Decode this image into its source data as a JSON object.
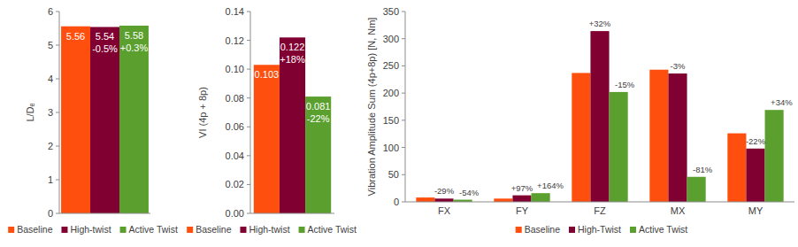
{
  "chart_data": [
    {
      "type": "bar",
      "ylabel": "L/Dₑ",
      "categories": [
        null
      ],
      "series": [
        {
          "name": "Baseline",
          "color": "#ff4f0f",
          "values": [
            5.56
          ]
        },
        {
          "name": "High-twist",
          "color": "#7f0031",
          "values": [
            5.54
          ],
          "annotations": [
            "-0.5%"
          ]
        },
        {
          "name": "Active Twist",
          "color": "#5ba02e",
          "values": [
            5.58
          ],
          "annotations": [
            "+0.3%"
          ]
        }
      ],
      "ylim": [
        0,
        6
      ],
      "yticks": [
        0,
        1,
        2,
        3,
        4,
        5,
        6
      ],
      "grid": false,
      "legend": "bottom",
      "data_labels": true
    },
    {
      "type": "bar",
      "ylabel": "VI (4p + 8p)",
      "categories": [
        null
      ],
      "series": [
        {
          "name": "Baseline",
          "color": "#ff4f0f",
          "values": [
            0.103
          ]
        },
        {
          "name": "High-twist",
          "color": "#7f0031",
          "values": [
            0.122
          ],
          "annotations": [
            "+18%"
          ]
        },
        {
          "name": "Active Twist",
          "color": "#5ba02e",
          "values": [
            0.081
          ],
          "annotations": [
            "-22%"
          ]
        }
      ],
      "ylim": [
        0,
        0.14
      ],
      "yticks": [
        {
          "value": 0,
          "label": "0.00"
        },
        {
          "value": 0.02,
          "label": "0.02"
        },
        {
          "value": 0.04,
          "label": "0.04"
        },
        {
          "value": 0.06,
          "label": "0.06"
        },
        {
          "value": 0.08,
          "label": "0.08"
        },
        {
          "value": 0.1,
          "label": "0.10"
        },
        {
          "value": 0.12,
          "label": "0.12"
        },
        {
          "value": 0.14,
          "label": "0.14"
        }
      ],
      "grid": false,
      "legend": "bottom",
      "data_labels": true
    },
    {
      "type": "bar",
      "ylabel": "Vibration Amplitude Sum (4p+8p) [N, Nm]",
      "categories": [
        "FX",
        "FY",
        "FZ",
        "MX",
        "MY"
      ],
      "series": [
        {
          "name": "Baseline",
          "color": "#ff4f0f",
          "values": [
            8,
            6,
            237,
            243,
            126
          ]
        },
        {
          "name": "High-Twist",
          "color": "#7f0031",
          "values": [
            6,
            12,
            314,
            236,
            98
          ],
          "annotations": [
            "-29%",
            "+97%",
            "+32%",
            "-3%",
            "-22%"
          ]
        },
        {
          "name": "Active Twist",
          "color": "#5ba02e",
          "values": [
            4,
            16,
            202,
            46,
            169
          ],
          "annotations": [
            "-54%",
            "+164%",
            "-15%",
            "-81%",
            "+34%"
          ]
        }
      ],
      "ylim": [
        0,
        350
      ],
      "yticks": [
        0,
        50,
        100,
        150,
        200,
        250,
        300,
        350
      ],
      "grid": false,
      "legend": "bottom",
      "data_labels": false
    }
  ]
}
